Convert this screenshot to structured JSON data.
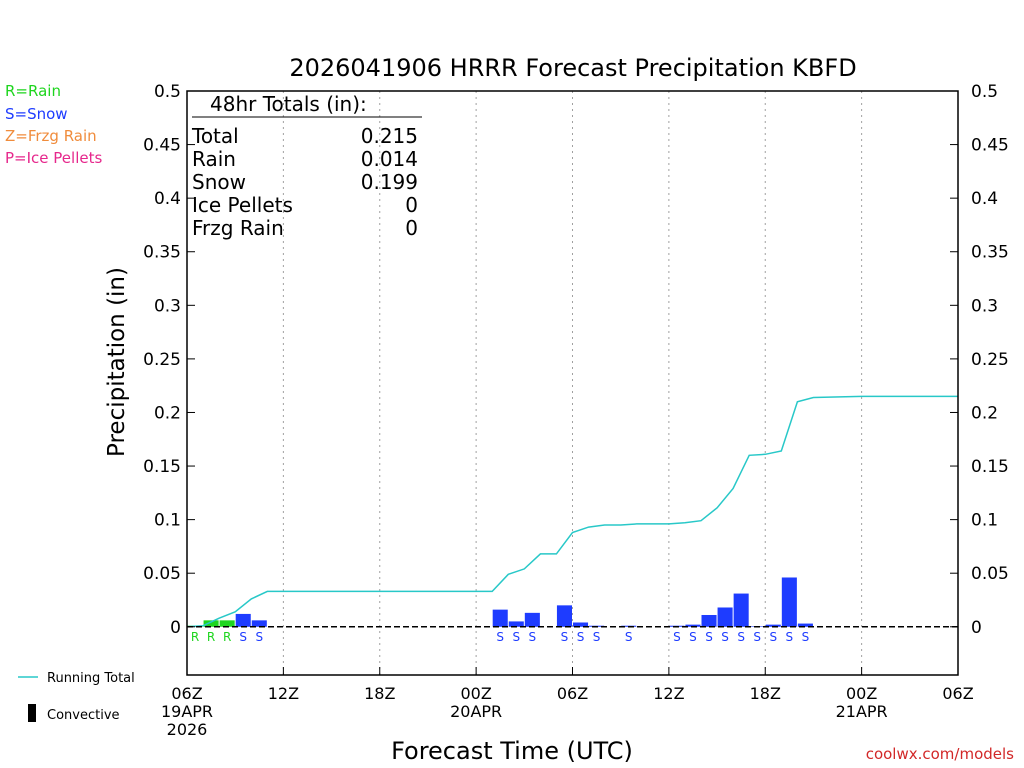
{
  "colors": {
    "rain": "#1ed51e",
    "snow": "#1e3cff",
    "frzg_rain": "#f08c3c",
    "ice_pellets": "#e6288c",
    "running_total": "#28c8c8",
    "axis": "#000000",
    "grid": "#a0a0a0",
    "credit": "#d22828"
  },
  "legend_left": {
    "rain": "R=Rain",
    "snow": "S=Snow",
    "frzg": "Z=Frzg Rain",
    "ice": "P=Ice Pellets"
  },
  "legend_bottom": {
    "running_total": "Running Total",
    "convective": "Convective"
  },
  "totals_box": {
    "title": "48hr Totals (in):",
    "rows": [
      {
        "label": "Total",
        "value": "0.215"
      },
      {
        "label": "Rain",
        "value": "0.014"
      },
      {
        "label": "Snow",
        "value": "0.199"
      },
      {
        "label": "Ice Pellets",
        "value": "0"
      },
      {
        "label": "Frzg Rain",
        "value": "0"
      }
    ]
  },
  "credit": "coolwx.com/models",
  "chart_data": {
    "type": "bar",
    "title": "2026041906 HRRR Forecast Precipitation KBFD",
    "xlabel": "Forecast Time (UTC)",
    "ylabel": "Precipitation (in)",
    "ylim": [
      -0.045,
      0.5
    ],
    "yticks": [
      0,
      0.05,
      0.1,
      0.15,
      0.2,
      0.25,
      0.3,
      0.35,
      0.4,
      0.45,
      0.5
    ],
    "ytick_labels": [
      "0",
      "0.05",
      "0.1",
      "0.15",
      "0.2",
      "0.25",
      "0.3",
      "0.35",
      "0.4",
      "0.45",
      "0.5"
    ],
    "xlim_hours": [
      0,
      48
    ],
    "xticks": [
      {
        "hour": 0,
        "lines": [
          "06Z",
          "19APR",
          "2026"
        ]
      },
      {
        "hour": 6,
        "lines": [
          "12Z"
        ]
      },
      {
        "hour": 12,
        "lines": [
          "18Z"
        ]
      },
      {
        "hour": 18,
        "lines": [
          "00Z",
          "20APR"
        ]
      },
      {
        "hour": 24,
        "lines": [
          "06Z"
        ]
      },
      {
        "hour": 30,
        "lines": [
          "12Z"
        ]
      },
      {
        "hour": 36,
        "lines": [
          "18Z"
        ]
      },
      {
        "hour": 42,
        "lines": [
          "00Z",
          "21APR"
        ]
      },
      {
        "hour": 48,
        "lines": [
          "06Z"
        ]
      }
    ],
    "grid": true,
    "hourly_precip": [
      {
        "hour": 1,
        "value": 0.001,
        "type": "R"
      },
      {
        "hour": 2,
        "value": 0.006,
        "type": "R"
      },
      {
        "hour": 3,
        "value": 0.006,
        "type": "R"
      },
      {
        "hour": 4,
        "value": 0.012,
        "type": "S"
      },
      {
        "hour": 5,
        "value": 0.006,
        "type": "S"
      },
      {
        "hour": 20,
        "value": 0.016,
        "type": "S"
      },
      {
        "hour": 21,
        "value": 0.005,
        "type": "S"
      },
      {
        "hour": 22,
        "value": 0.013,
        "type": "S"
      },
      {
        "hour": 24,
        "value": 0.02,
        "type": "S"
      },
      {
        "hour": 25,
        "value": 0.004,
        "type": "S"
      },
      {
        "hour": 26,
        "value": 0.001,
        "type": "S"
      },
      {
        "hour": 28,
        "value": 0.001,
        "type": "S"
      },
      {
        "hour": 31,
        "value": 0.001,
        "type": "S"
      },
      {
        "hour": 32,
        "value": 0.002,
        "type": "S"
      },
      {
        "hour": 33,
        "value": 0.011,
        "type": "S"
      },
      {
        "hour": 34,
        "value": 0.018,
        "type": "S"
      },
      {
        "hour": 35,
        "value": 0.031,
        "type": "S"
      },
      {
        "hour": 36,
        "value": 0.0005,
        "type": "S"
      },
      {
        "hour": 37,
        "value": 0.002,
        "type": "S"
      },
      {
        "hour": 38,
        "value": 0.046,
        "type": "S"
      },
      {
        "hour": 39,
        "value": 0.003,
        "type": "S"
      }
    ],
    "running_total": [
      [
        0,
        0
      ],
      [
        1,
        0.001
      ],
      [
        2,
        0.008
      ],
      [
        3,
        0.014
      ],
      [
        4,
        0.026
      ],
      [
        5,
        0.033
      ],
      [
        6,
        0.033
      ],
      [
        19,
        0.033
      ],
      [
        20,
        0.049
      ],
      [
        21,
        0.054
      ],
      [
        22,
        0.068
      ],
      [
        23,
        0.068
      ],
      [
        24,
        0.088
      ],
      [
        25,
        0.093
      ],
      [
        26,
        0.095
      ],
      [
        27,
        0.095
      ],
      [
        28,
        0.096
      ],
      [
        29,
        0.096
      ],
      [
        30,
        0.096
      ],
      [
        31,
        0.097
      ],
      [
        32,
        0.099
      ],
      [
        33,
        0.111
      ],
      [
        34,
        0.129
      ],
      [
        35,
        0.16
      ],
      [
        36,
        0.161
      ],
      [
        37,
        0.164
      ],
      [
        38,
        0.21
      ],
      [
        39,
        0.214
      ],
      [
        42,
        0.215
      ],
      [
        48,
        0.215
      ]
    ]
  }
}
